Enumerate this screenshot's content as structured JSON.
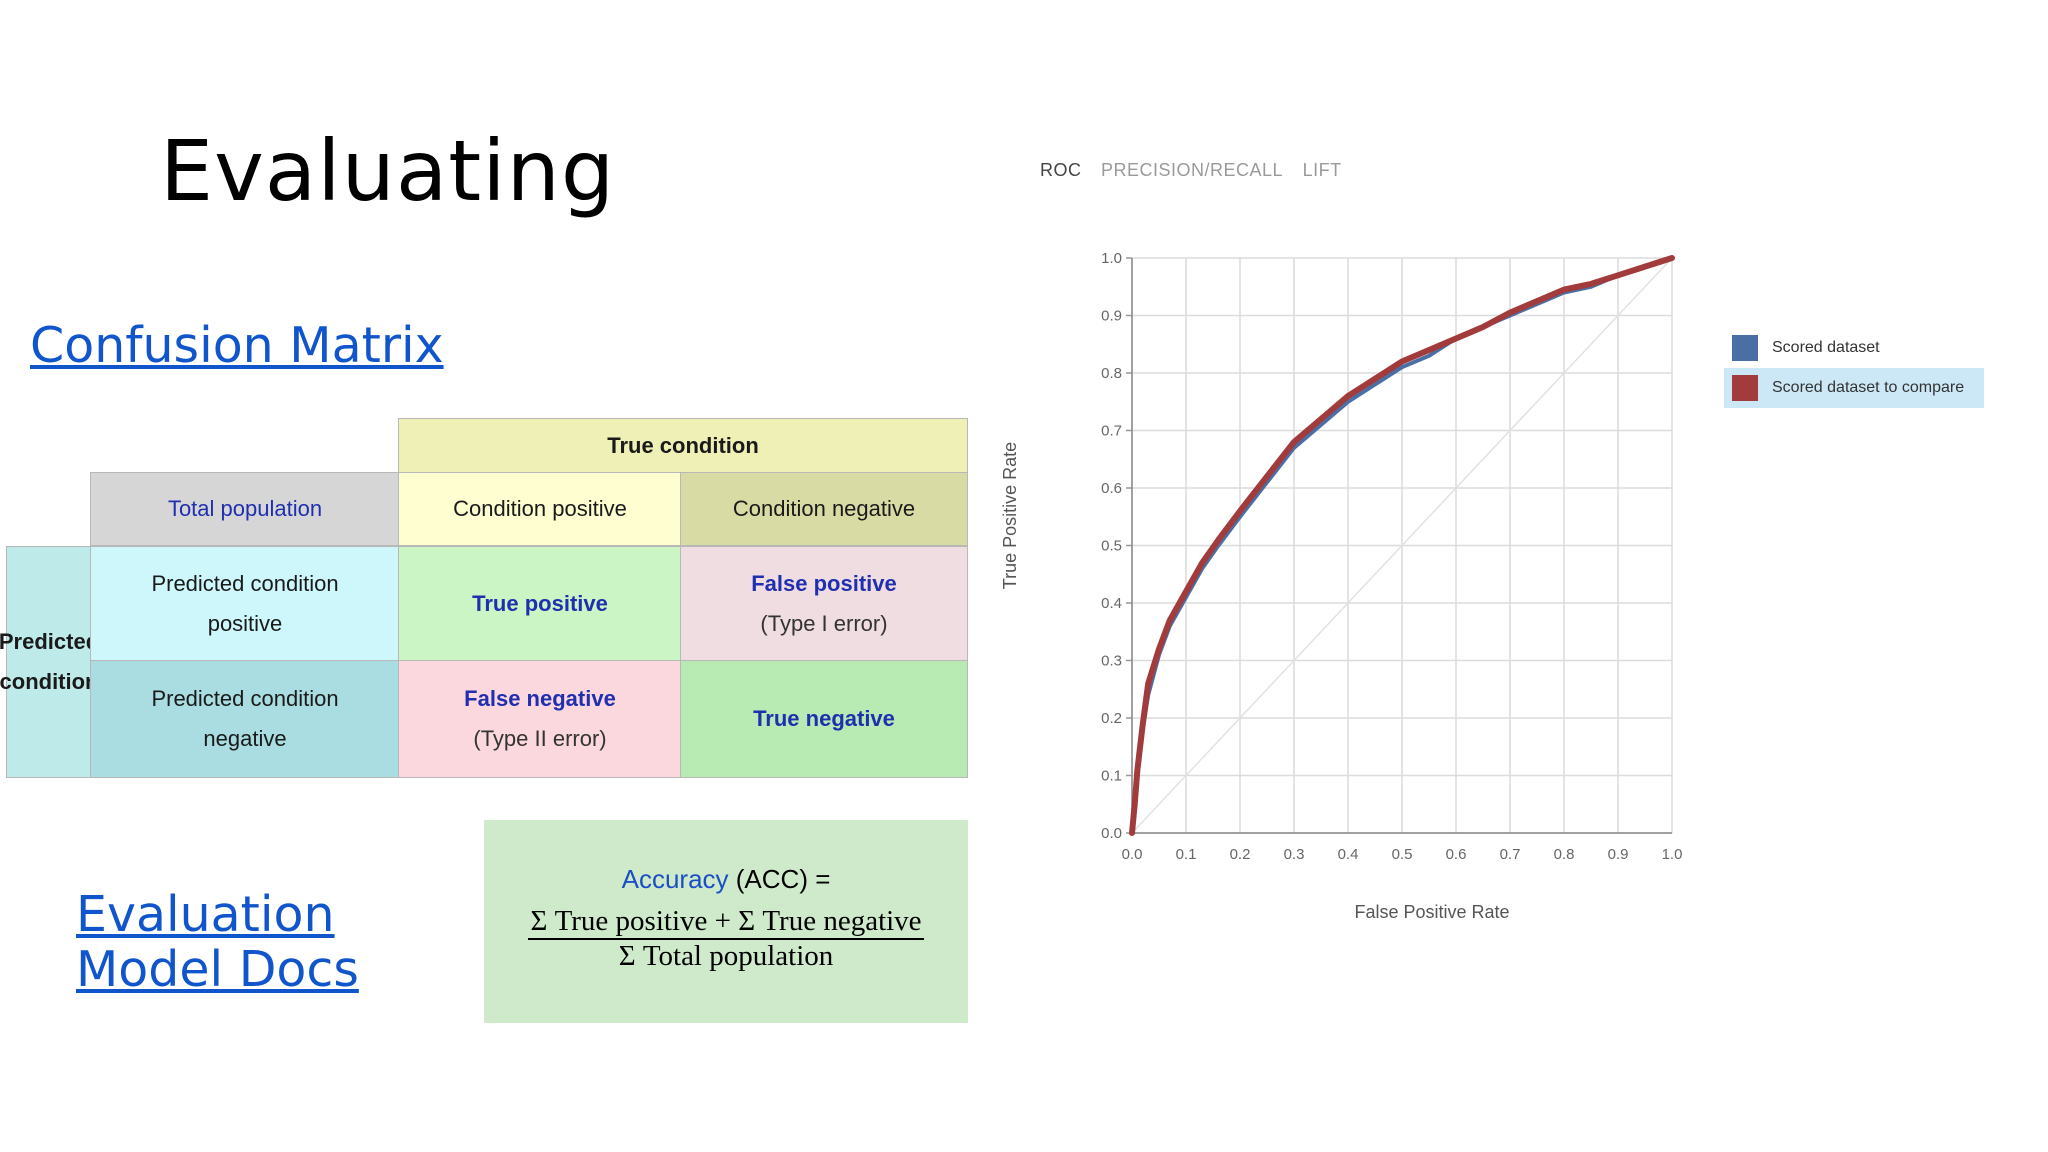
{
  "slide": {
    "title": "Evaluating",
    "links": {
      "confusion_matrix": "Confusion Matrix",
      "docs_line1": "Evaluation",
      "docs_line2": "Model Docs"
    }
  },
  "confusion_matrix": {
    "true_condition": "True condition",
    "total_population": "Total population",
    "condition_positive": "Condition positive",
    "condition_negative": "Condition negative",
    "predicted_condition": "Predicted condition",
    "predicted_positive_l1": "Predicted condition",
    "predicted_positive_l2": "positive",
    "predicted_negative_l1": "Predicted condition",
    "predicted_negative_l2": "negative",
    "true_positive": "True positive",
    "false_positive": "False positive",
    "false_positive_sub": "(Type I error)",
    "false_negative": "False negative",
    "false_negative_sub": "(Type II error)",
    "true_negative": "True negative",
    "colors": {
      "true_condition": "#eef0b5",
      "total_population": "#d6d6d6",
      "condition_positive": "#fefed1",
      "condition_negative": "#d9dba5",
      "predicted": "#bfeaea",
      "predicted_positive": "#cdf7fb",
      "predicted_negative": "#a9dde1",
      "true_positive": "#cbf5c4",
      "false_positive": "#efdde1",
      "false_negative": "#fbd8dd",
      "true_negative": "#b7ebb3"
    }
  },
  "accuracy": {
    "name": "Accuracy",
    "abbr": "(ACC) =",
    "numerator": "Σ True positive + Σ True negative",
    "denominator": "Σ Total population"
  },
  "chart_tabs": {
    "roc": "ROC",
    "pr": "PRECISION/RECALL",
    "lift": "LIFT"
  },
  "chart_data": {
    "type": "line",
    "title": "",
    "xlabel": "False Positive Rate",
    "ylabel": "True Positive Rate",
    "xlim": [
      0,
      1
    ],
    "ylim": [
      0,
      1
    ],
    "xticks": [
      "0.0",
      "0.1",
      "0.2",
      "0.3",
      "0.4",
      "0.5",
      "0.6",
      "0.7",
      "0.8",
      "0.9",
      "1.0"
    ],
    "yticks": [
      "0.0",
      "0.1",
      "0.2",
      "0.3",
      "0.4",
      "0.5",
      "0.6",
      "0.7",
      "0.8",
      "0.9",
      "1.0"
    ],
    "grid": true,
    "legend_position": "right",
    "diagonal": true,
    "series": [
      {
        "name": "Scored dataset",
        "color": "#4a6fa5",
        "x": [
          0.0,
          0.005,
          0.01,
          0.02,
          0.03,
          0.05,
          0.07,
          0.1,
          0.13,
          0.16,
          0.2,
          0.25,
          0.3,
          0.35,
          0.4,
          0.45,
          0.5,
          0.55,
          0.6,
          0.65,
          0.7,
          0.75,
          0.8,
          0.85,
          0.9,
          0.95,
          1.0
        ],
        "y": [
          0.0,
          0.06,
          0.12,
          0.18,
          0.24,
          0.31,
          0.36,
          0.41,
          0.46,
          0.5,
          0.55,
          0.61,
          0.67,
          0.71,
          0.75,
          0.78,
          0.81,
          0.83,
          0.86,
          0.88,
          0.9,
          0.92,
          0.94,
          0.95,
          0.97,
          0.985,
          1.0
        ]
      },
      {
        "name": "Scored dataset to compare",
        "color": "#a23b3b",
        "x": [
          0.0,
          0.005,
          0.01,
          0.02,
          0.03,
          0.05,
          0.07,
          0.1,
          0.13,
          0.16,
          0.2,
          0.25,
          0.3,
          0.35,
          0.4,
          0.45,
          0.5,
          0.55,
          0.6,
          0.65,
          0.7,
          0.75,
          0.8,
          0.85,
          0.9,
          0.95,
          1.0
        ],
        "y": [
          0.0,
          0.05,
          0.11,
          0.19,
          0.26,
          0.32,
          0.37,
          0.42,
          0.47,
          0.51,
          0.56,
          0.62,
          0.68,
          0.72,
          0.76,
          0.79,
          0.82,
          0.84,
          0.86,
          0.88,
          0.905,
          0.925,
          0.945,
          0.955,
          0.97,
          0.985,
          1.0
        ]
      }
    ]
  }
}
